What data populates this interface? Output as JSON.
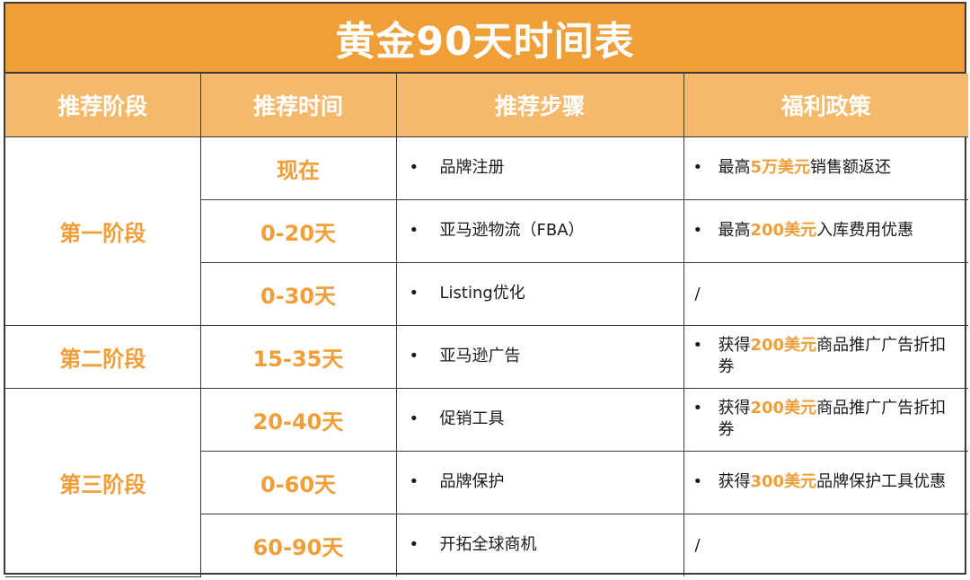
{
  "title": "黄金90天时间表",
  "headers": [
    "推荐阶段",
    "推荐时间",
    "推荐步骤",
    "福利政策"
  ],
  "stages": [
    "第一阶段",
    "第二阶段",
    "第三阶段"
  ],
  "rows": [
    {
      "time": "现在",
      "step": "品牌注册",
      "benefit": {
        "pre": "最高",
        "hl": "5万美元",
        "post": "销售额返还"
      }
    },
    {
      "time": "0-20天",
      "step": "亚马逊物流（FBA）",
      "benefit": {
        "pre": "最高",
        "hl": "200美元",
        "post": "入库费用优惠"
      }
    },
    {
      "time": "0-30天",
      "step": "Listing优化",
      "benefit": {
        "none": "/"
      }
    },
    {
      "time": "15-35天",
      "step": "亚马逊广告",
      "benefit": {
        "pre": "获得",
        "hl": "200美元",
        "post": "商品推广广告折扣券"
      }
    },
    {
      "time": "20-40天",
      "step": "促销工具",
      "benefit": {
        "pre": "获得",
        "hl": "200美元",
        "post": "商品推广广告折扣券"
      }
    },
    {
      "time": "0-60天",
      "step": "品牌保护",
      "benefit": {
        "pre": "获得",
        "hl": "300美元",
        "post": "品牌保护工具优惠"
      }
    },
    {
      "time": "60-90天",
      "step": "开拓全球商机",
      "benefit": {
        "none": "/"
      }
    }
  ],
  "bullet": "•"
}
